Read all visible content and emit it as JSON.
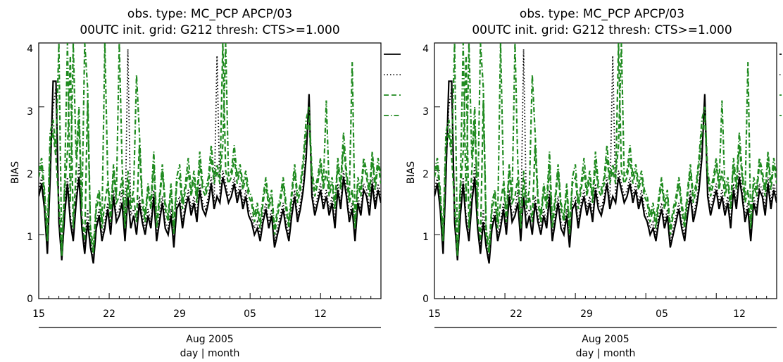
{
  "chart_data": [
    {
      "type": "line",
      "title": "obs. type: MC_PCP  APCP/03",
      "subtitle": "00UTC init.  grid: G212  thresh: CTS>=1.000",
      "ylabel": "BIAS",
      "xlabel_month": "Aug 2005",
      "xlabel_units": "day | month",
      "ylim": [
        0,
        4
      ],
      "yticks": [
        "0",
        "1",
        "2",
        "3",
        "4"
      ],
      "xticks": [
        "15",
        "22",
        "29",
        "05",
        "12"
      ],
      "series": [
        {
          "style": "solid",
          "color": "#000000",
          "values": [
            1.6,
            1.8,
            1.4,
            0.7,
            1.9,
            3.4,
            3.4,
            1.2,
            0.6,
            1.3,
            1.8,
            1.2,
            0.9,
            1.5,
            1.9,
            1.1,
            0.7,
            1.2,
            0.8,
            0.55,
            1.1,
            1.3,
            0.9,
            1.1,
            1.4,
            1.0,
            1.6,
            1.2,
            1.3,
            1.5,
            0.9,
            1.6,
            1.1,
            1.3,
            1.0,
            1.5,
            1.2,
            1.0,
            1.3,
            1.1,
            1.6,
            0.9,
            1.2,
            1.5,
            1.1,
            1.0,
            1.3,
            0.8,
            1.4,
            1.5,
            1.1,
            1.4,
            1.6,
            1.3,
            1.5,
            1.2,
            1.7,
            1.4,
            1.3,
            1.5,
            1.8,
            1.4,
            1.6,
            1.5,
            1.9,
            1.7,
            1.5,
            1.6,
            1.8,
            1.5,
            1.7,
            1.4,
            1.6,
            1.3,
            1.2,
            1.0,
            1.1,
            0.9,
            1.2,
            1.4,
            1.1,
            1.3,
            0.8,
            1.0,
            1.2,
            1.4,
            1.1,
            0.9,
            1.3,
            1.6,
            1.2,
            1.4,
            1.7,
            2.2,
            3.2,
            1.6,
            1.3,
            1.5,
            1.7,
            1.4,
            1.6,
            1.3,
            1.5,
            1.1,
            1.7,
            1.4,
            1.9,
            1.6,
            1.2,
            1.4,
            0.9,
            1.5,
            1.3,
            1.7,
            1.6,
            1.3,
            1.8,
            1.4,
            1.7,
            1.5
          ]
        },
        {
          "style": "dotted",
          "color": "#000000",
          "values": [
            1.7,
            1.9,
            1.5,
            0.8,
            2.0,
            3.0,
            3.3,
            1.4,
            0.7,
            1.5,
            1.9,
            1.3,
            1.0,
            1.6,
            2.1,
            1.2,
            0.8,
            1.4,
            0.9,
            0.6,
            1.2,
            1.4,
            1.0,
            1.2,
            1.5,
            1.1,
            1.7,
            1.3,
            1.4,
            1.7,
            1.0,
            3.9,
            1.3,
            1.4,
            1.2,
            1.6,
            1.3,
            1.1,
            1.4,
            1.2,
            1.7,
            1.0,
            1.3,
            1.6,
            1.2,
            1.1,
            1.4,
            0.9,
            1.5,
            1.6,
            1.2,
            1.5,
            1.7,
            1.4,
            1.6,
            1.3,
            1.8,
            1.5,
            1.4,
            1.6,
            1.9,
            1.5,
            3.8,
            1.6,
            2.0,
            1.8,
            1.6,
            1.7,
            1.9,
            1.6,
            1.8,
            1.5,
            1.7,
            1.4,
            1.3,
            1.1,
            1.2,
            1.0,
            1.3,
            1.5,
            1.2,
            1.4,
            0.9,
            1.1,
            1.3,
            1.5,
            1.2,
            1.0,
            1.4,
            1.7,
            1.3,
            1.5,
            1.8,
            2.3,
            3.0,
            1.7,
            1.4,
            1.6,
            1.8,
            1.5,
            1.7,
            1.4,
            1.6,
            1.2,
            1.8,
            1.5,
            2.0,
            1.7,
            1.3,
            1.5,
            1.0,
            1.6,
            1.4,
            1.8,
            1.7,
            1.4,
            1.9,
            1.5,
            1.8,
            1.6
          ]
        },
        {
          "style": "dashed",
          "color": "#1f8a1f",
          "values": [
            1.9,
            2.1,
            1.6,
            0.9,
            2.4,
            2.6,
            2.2,
            1.5,
            0.65,
            1.7,
            2.3,
            3.8,
            1.1,
            2.0,
            2.8,
            1.3,
            0.9,
            3.1,
            1.0,
            0.7,
            1.4,
            1.6,
            1.1,
            1.5,
            1.8,
            1.2,
            2.0,
            1.5,
            1.6,
            1.9,
            1.1,
            1.8,
            1.4,
            1.6,
            1.2,
            2.4,
            1.5,
            1.2,
            1.7,
            1.4,
            2.1,
            1.1,
            1.5,
            2.0,
            1.4,
            1.2,
            1.7,
            1.0,
            1.8,
            1.9,
            1.4,
            1.7,
            2.0,
            1.6,
            1.9,
            1.5,
            2.1,
            1.7,
            1.6,
            1.8,
            2.2,
            1.8,
            2.0,
            1.8,
            4.0,
            2.0,
            1.8,
            1.9,
            2.2,
            1.8,
            2.0,
            1.7,
            1.9,
            1.6,
            1.5,
            1.2,
            1.4,
            1.1,
            1.5,
            1.8,
            1.4,
            1.6,
            1.0,
            1.3,
            1.5,
            1.8,
            1.4,
            1.1,
            1.6,
            2.0,
            1.5,
            1.7,
            2.1,
            2.6,
            2.8,
            1.9,
            1.6,
            1.8,
            2.1,
            1.7,
            2.0,
            1.6,
            1.8,
            1.4,
            2.1,
            1.7,
            2.4,
            1.9,
            1.5,
            1.7,
            1.1,
            1.8,
            1.6,
            2.1,
            1.9,
            1.6,
            2.2,
            1.7,
            2.1,
            1.8
          ]
        },
        {
          "style": "dashdot",
          "color": "#1f8a1f",
          "values": [
            2.0,
            2.2,
            1.7,
            1.0,
            2.6,
            2.8,
            2.3,
            4.0,
            0.7,
            1.8,
            4.0,
            1.5,
            4.0,
            2.2,
            3.0,
            1.4,
            4.0,
            3.3,
            1.1,
            0.8,
            1.5,
            1.7,
            1.2,
            4.0,
            1.9,
            1.3,
            2.1,
            1.6,
            4.0,
            2.1,
            1.2,
            2.0,
            1.5,
            1.7,
            3.5,
            2.6,
            1.6,
            1.3,
            1.8,
            1.5,
            2.3,
            1.2,
            1.6,
            2.1,
            1.5,
            1.3,
            1.8,
            1.1,
            1.9,
            2.1,
            1.5,
            1.8,
            2.2,
            1.7,
            2.0,
            1.6,
            2.3,
            1.8,
            1.7,
            1.9,
            2.4,
            1.9,
            2.1,
            1.9,
            2.4,
            4.0,
            1.9,
            2.0,
            2.4,
            1.9,
            2.1,
            1.8,
            2.0,
            1.7,
            1.6,
            1.3,
            1.5,
            1.2,
            1.6,
            1.9,
            1.5,
            1.7,
            1.1,
            1.4,
            1.6,
            1.9,
            1.5,
            1.2,
            1.7,
            2.1,
            1.6,
            1.8,
            2.2,
            2.8,
            3.0,
            2.0,
            1.7,
            1.9,
            2.2,
            1.8,
            3.1,
            1.7,
            1.9,
            1.5,
            2.2,
            1.8,
            2.6,
            2.0,
            1.6,
            3.7,
            1.2,
            1.9,
            1.7,
            2.2,
            2.0,
            1.7,
            2.3,
            1.8,
            2.2,
            1.9
          ]
        }
      ]
    },
    {
      "type": "line",
      "title": "obs. type: MC_PCP  APCP/03",
      "subtitle": "00UTC init.  grid: G212  thresh: CTS>=1.000",
      "ylabel": "BIAS",
      "xlabel_month": "Aug 2005",
      "xlabel_units": "day | month",
      "ylim": [
        0,
        4
      ],
      "yticks": [
        "0",
        "1",
        "2",
        "3",
        "4"
      ],
      "xticks": [
        "15",
        "22",
        "29",
        "05",
        "12"
      ],
      "series": [
        {
          "style": "solid",
          "color": "#000000",
          "values": [
            1.6,
            1.8,
            1.4,
            0.7,
            1.9,
            3.4,
            3.4,
            1.2,
            0.6,
            1.3,
            1.8,
            1.2,
            0.9,
            1.5,
            1.9,
            1.1,
            0.7,
            1.2,
            0.8,
            0.55,
            1.1,
            1.3,
            0.9,
            1.1,
            1.4,
            1.0,
            1.6,
            1.2,
            1.3,
            1.5,
            0.9,
            1.6,
            1.1,
            1.3,
            1.0,
            1.5,
            1.2,
            1.0,
            1.3,
            1.1,
            1.6,
            0.9,
            1.2,
            1.5,
            1.1,
            1.0,
            1.3,
            0.8,
            1.4,
            1.5,
            1.1,
            1.4,
            1.6,
            1.3,
            1.5,
            1.2,
            1.7,
            1.4,
            1.3,
            1.5,
            1.8,
            1.4,
            1.6,
            1.5,
            1.9,
            1.7,
            1.5,
            1.6,
            1.8,
            1.5,
            1.7,
            1.4,
            1.6,
            1.3,
            1.2,
            1.0,
            1.1,
            0.9,
            1.2,
            1.4,
            1.1,
            1.3,
            0.8,
            1.0,
            1.2,
            1.4,
            1.1,
            0.9,
            1.3,
            1.6,
            1.2,
            1.4,
            1.7,
            2.2,
            3.2,
            1.6,
            1.3,
            1.5,
            1.7,
            1.4,
            1.6,
            1.3,
            1.5,
            1.1,
            1.7,
            1.4,
            1.9,
            1.6,
            1.2,
            1.4,
            0.9,
            1.5,
            1.3,
            1.7,
            1.6,
            1.3,
            1.8,
            1.4,
            1.7,
            1.5
          ]
        },
        {
          "style": "dotted",
          "color": "#000000",
          "values": [
            1.7,
            1.9,
            1.5,
            0.8,
            2.0,
            3.0,
            3.3,
            1.4,
            0.7,
            1.5,
            1.9,
            1.3,
            1.0,
            1.6,
            2.1,
            1.2,
            0.8,
            1.4,
            0.9,
            0.6,
            1.2,
            1.4,
            1.0,
            1.2,
            1.5,
            1.1,
            1.7,
            1.3,
            1.4,
            1.7,
            1.0,
            3.9,
            1.3,
            1.4,
            1.2,
            1.6,
            1.3,
            1.1,
            1.4,
            1.2,
            1.7,
            1.0,
            1.3,
            1.6,
            1.2,
            1.1,
            1.4,
            0.9,
            1.5,
            1.6,
            1.2,
            1.5,
            1.7,
            1.4,
            1.6,
            1.3,
            1.8,
            1.5,
            1.4,
            1.6,
            1.9,
            1.5,
            3.8,
            1.6,
            2.0,
            1.8,
            1.6,
            1.7,
            1.9,
            1.6,
            1.8,
            1.5,
            1.7,
            1.4,
            1.3,
            1.1,
            1.2,
            1.0,
            1.3,
            1.5,
            1.2,
            1.4,
            0.9,
            1.1,
            1.3,
            1.5,
            1.2,
            1.0,
            1.4,
            1.7,
            1.3,
            1.5,
            1.8,
            2.3,
            3.0,
            1.7,
            1.4,
            1.6,
            1.8,
            1.5,
            1.7,
            1.4,
            1.6,
            1.2,
            1.8,
            1.5,
            2.0,
            1.7,
            1.3,
            1.5,
            1.0,
            1.6,
            1.4,
            1.8,
            1.7,
            1.4,
            1.9,
            1.5,
            1.8,
            1.6
          ]
        },
        {
          "style": "dashed",
          "color": "#1f8a1f",
          "values": [
            1.9,
            2.1,
            1.6,
            0.9,
            2.4,
            2.6,
            2.2,
            1.5,
            0.65,
            1.7,
            2.3,
            3.8,
            1.1,
            2.0,
            2.8,
            1.3,
            0.9,
            3.1,
            1.0,
            0.7,
            1.4,
            1.6,
            1.1,
            1.5,
            1.8,
            1.2,
            2.0,
            1.5,
            1.6,
            1.9,
            1.1,
            1.8,
            1.4,
            1.6,
            1.2,
            2.4,
            1.5,
            1.2,
            1.7,
            1.4,
            2.1,
            1.1,
            1.5,
            2.0,
            1.4,
            1.2,
            1.7,
            1.0,
            1.8,
            1.9,
            1.4,
            1.7,
            2.0,
            1.6,
            1.9,
            1.5,
            2.1,
            1.7,
            1.6,
            1.8,
            2.2,
            1.8,
            2.0,
            1.8,
            4.0,
            2.0,
            1.8,
            1.9,
            2.2,
            1.8,
            2.0,
            1.7,
            1.9,
            1.6,
            1.5,
            1.2,
            1.4,
            1.1,
            1.5,
            1.8,
            1.4,
            1.6,
            1.0,
            1.3,
            1.5,
            1.8,
            1.4,
            1.1,
            1.6,
            2.0,
            1.5,
            1.7,
            2.1,
            2.6,
            2.8,
            1.9,
            1.6,
            1.8,
            2.1,
            1.7,
            2.0,
            1.6,
            1.8,
            1.4,
            2.1,
            1.7,
            2.4,
            1.9,
            1.5,
            1.7,
            1.1,
            1.8,
            1.6,
            2.1,
            1.9,
            1.6,
            2.2,
            1.7,
            2.1,
            1.8
          ]
        },
        {
          "style": "dashdot",
          "color": "#1f8a1f",
          "values": [
            2.0,
            2.2,
            1.7,
            1.0,
            2.6,
            2.8,
            2.3,
            4.0,
            0.7,
            1.8,
            4.0,
            1.5,
            4.0,
            2.2,
            3.0,
            1.4,
            4.0,
            3.3,
            1.1,
            0.8,
            1.5,
            1.7,
            1.2,
            4.0,
            1.9,
            1.3,
            2.1,
            1.6,
            4.0,
            2.1,
            1.2,
            2.0,
            1.5,
            1.7,
            3.5,
            2.6,
            1.6,
            1.3,
            1.8,
            1.5,
            2.3,
            1.2,
            1.6,
            2.1,
            1.5,
            1.3,
            1.8,
            1.1,
            1.9,
            2.1,
            1.5,
            1.8,
            2.2,
            1.7,
            2.0,
            1.6,
            2.3,
            1.8,
            1.7,
            1.9,
            2.4,
            1.9,
            2.1,
            1.9,
            2.4,
            4.0,
            1.9,
            2.0,
            2.4,
            1.9,
            2.1,
            1.8,
            2.0,
            1.7,
            1.6,
            1.3,
            1.5,
            1.2,
            1.6,
            1.9,
            1.5,
            1.7,
            1.1,
            1.4,
            1.6,
            1.9,
            1.5,
            1.2,
            1.7,
            2.1,
            1.6,
            1.8,
            2.2,
            2.8,
            3.0,
            2.0,
            1.7,
            1.9,
            2.2,
            1.8,
            3.1,
            1.7,
            1.9,
            1.5,
            2.2,
            1.8,
            2.6,
            2.0,
            1.6,
            3.7,
            1.2,
            1.9,
            1.7,
            2.2,
            2.0,
            1.7,
            2.3,
            1.8,
            2.2,
            1.9
          ]
        }
      ]
    }
  ]
}
